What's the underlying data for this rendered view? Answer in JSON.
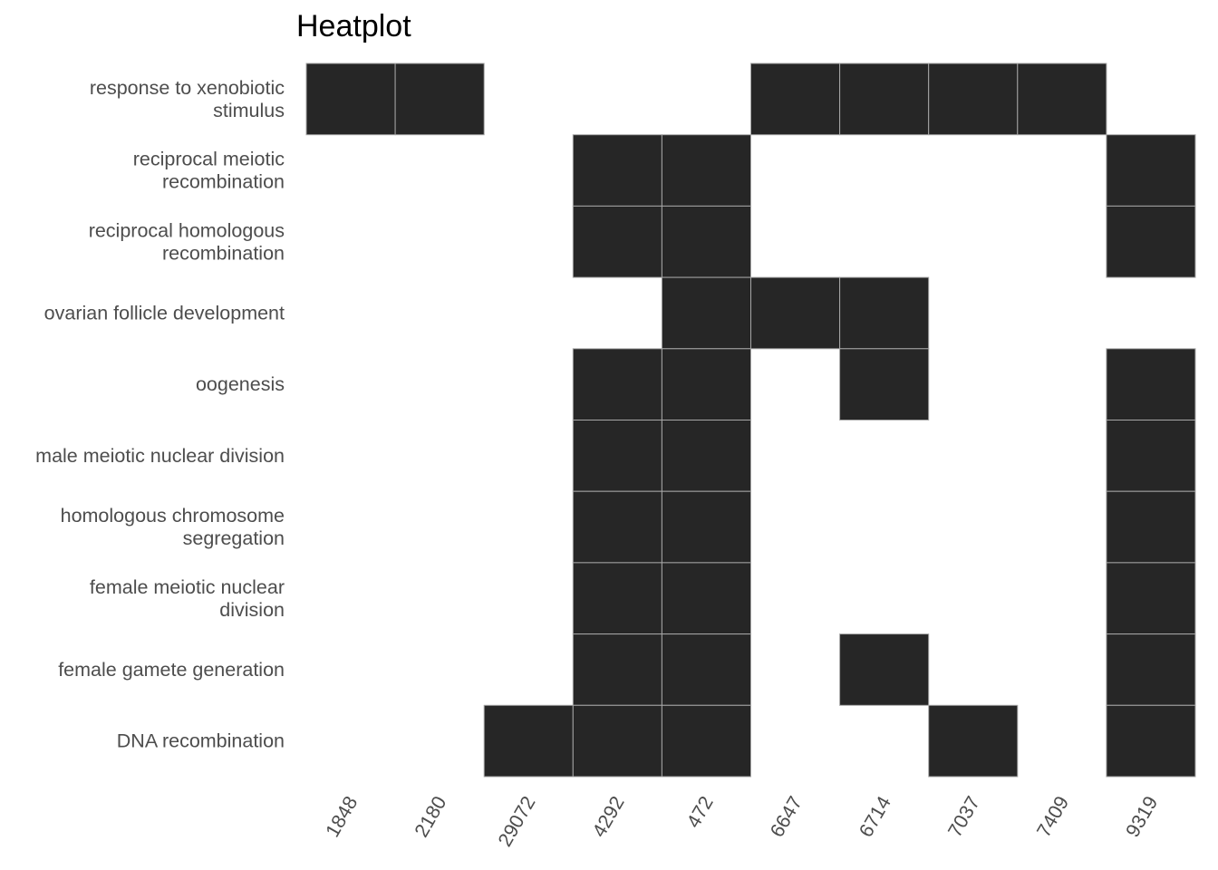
{
  "chart_data": {
    "type": "heatmap",
    "title": "Heatplot",
    "xlabel": "",
    "ylabel": "",
    "x_categories": [
      "1848",
      "2180",
      "29072",
      "4292",
      "472",
      "6647",
      "6714",
      "7037",
      "7409",
      "9319"
    ],
    "y_categories": [
      [
        "response to xenobiotic",
        "stimulus"
      ],
      [
        "reciprocal meiotic",
        "recombination"
      ],
      [
        "reciprocal homologous",
        "recombination"
      ],
      [
        "ovarian follicle development"
      ],
      [
        "oogenesis"
      ],
      [
        "male meiotic nuclear division"
      ],
      [
        "homologous chromosome",
        "segregation"
      ],
      [
        "female meiotic nuclear",
        "division"
      ],
      [
        "female gamete generation"
      ],
      [
        "DNA recombination"
      ]
    ],
    "matrix": [
      [
        1,
        1,
        0,
        0,
        0,
        1,
        1,
        1,
        1,
        0
      ],
      [
        0,
        0,
        0,
        1,
        1,
        0,
        0,
        0,
        0,
        1
      ],
      [
        0,
        0,
        0,
        1,
        1,
        0,
        0,
        0,
        0,
        1
      ],
      [
        0,
        0,
        0,
        0,
        1,
        1,
        1,
        0,
        0,
        0
      ],
      [
        0,
        0,
        0,
        1,
        1,
        0,
        1,
        0,
        0,
        1
      ],
      [
        0,
        0,
        0,
        1,
        1,
        0,
        0,
        0,
        0,
        1
      ],
      [
        0,
        0,
        0,
        1,
        1,
        0,
        0,
        0,
        0,
        1
      ],
      [
        0,
        0,
        0,
        1,
        1,
        0,
        0,
        0,
        0,
        1
      ],
      [
        0,
        0,
        0,
        1,
        1,
        0,
        1,
        0,
        0,
        1
      ],
      [
        0,
        0,
        1,
        1,
        1,
        0,
        0,
        1,
        0,
        1
      ]
    ],
    "fill_color": "#262626",
    "border_color": "#a6a6a6",
    "grid": false,
    "legend": "none"
  }
}
